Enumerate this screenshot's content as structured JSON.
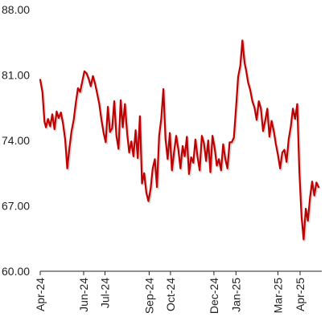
{
  "chart_data": {
    "type": "line",
    "title": "",
    "xlabel": "",
    "ylabel": "",
    "ylim": [
      60,
      88
    ],
    "y_ticks": [
      "60.00",
      "67.00",
      "74.00",
      "81.00",
      "88.00"
    ],
    "x_ticks": [
      {
        "label": "Apr-24",
        "date": "2024-04-01"
      },
      {
        "label": "Jun-24",
        "date": "2024-06-01"
      },
      {
        "label": "Jul-24",
        "date": "2024-07-01"
      },
      {
        "label": "Sep-24",
        "date": "2024-09-01"
      },
      {
        "label": "Oct-24",
        "date": "2024-10-01"
      },
      {
        "label": "Dec-24",
        "date": "2024-12-01"
      },
      {
        "label": "Jan-25",
        "date": "2025-01-01"
      },
      {
        "label": "Mar-25",
        "date": "2025-03-01"
      },
      {
        "label": "Apr-25",
        "date": "2025-04-01"
      }
    ],
    "grid": false,
    "line_color": "#c00000",
    "series": [
      {
        "x": [
          "2024-04-01",
          "2024-04-04",
          "2024-04-07",
          "2024-04-09",
          "2024-04-12",
          "2024-04-15",
          "2024-04-18",
          "2024-04-21",
          "2024-04-24",
          "2024-04-27",
          "2024-04-30",
          "2024-05-03",
          "2024-05-06",
          "2024-05-09",
          "2024-05-12",
          "2024-05-15",
          "2024-05-18",
          "2024-05-21",
          "2024-05-24",
          "2024-05-27",
          "2024-05-30",
          "2024-06-02",
          "2024-06-05",
          "2024-06-08",
          "2024-06-11",
          "2024-06-14",
          "2024-06-17",
          "2024-06-20",
          "2024-06-23",
          "2024-06-26",
          "2024-06-29",
          "2024-07-02",
          "2024-07-05",
          "2024-07-08",
          "2024-07-11",
          "2024-07-14",
          "2024-07-17",
          "2024-07-20",
          "2024-07-23",
          "2024-07-26",
          "2024-07-29",
          "2024-08-01",
          "2024-08-04",
          "2024-08-07",
          "2024-08-10",
          "2024-08-13",
          "2024-08-16",
          "2024-08-19",
          "2024-08-22",
          "2024-08-25",
          "2024-08-28",
          "2024-08-31",
          "2024-09-03",
          "2024-09-06",
          "2024-09-09",
          "2024-09-12",
          "2024-09-15",
          "2024-09-18",
          "2024-09-21",
          "2024-09-24",
          "2024-09-27",
          "2024-09-30",
          "2024-10-03",
          "2024-10-06",
          "2024-10-09",
          "2024-10-12",
          "2024-10-15",
          "2024-10-18",
          "2024-10-21",
          "2024-10-24",
          "2024-10-27",
          "2024-10-30",
          "2024-11-02",
          "2024-11-05",
          "2024-11-08",
          "2024-11-11",
          "2024-11-14",
          "2024-11-17",
          "2024-11-20",
          "2024-11-23",
          "2024-11-26",
          "2024-11-29",
          "2024-12-02",
          "2024-12-05",
          "2024-12-08",
          "2024-12-11",
          "2024-12-14",
          "2024-12-17",
          "2024-12-20",
          "2024-12-23",
          "2024-12-26",
          "2024-12-29",
          "2025-01-01",
          "2025-01-04",
          "2025-01-07",
          "2025-01-10",
          "2025-01-13",
          "2025-01-15",
          "2025-01-18",
          "2025-01-21",
          "2025-01-24",
          "2025-01-27",
          "2025-01-30",
          "2025-02-02",
          "2025-02-05",
          "2025-02-08",
          "2025-02-11",
          "2025-02-14",
          "2025-02-17",
          "2025-02-20",
          "2025-02-23",
          "2025-02-26",
          "2025-03-01",
          "2025-03-04",
          "2025-03-07",
          "2025-03-10",
          "2025-03-13",
          "2025-03-16",
          "2025-03-19",
          "2025-03-22",
          "2025-03-25",
          "2025-03-28",
          "2025-03-31",
          "2025-04-03",
          "2025-04-06",
          "2025-04-09",
          "2025-04-12",
          "2025-04-15",
          "2025-04-18",
          "2025-04-21",
          "2025-04-24",
          "2025-04-27"
        ],
        "values": [
          80.5,
          79.2,
          76.0,
          75.4,
          76.3,
          75.5,
          76.8,
          75.2,
          77.1,
          76.4,
          77.0,
          75.8,
          74.1,
          71.0,
          73.2,
          75.0,
          76.2,
          78.0,
          79.6,
          79.2,
          80.3,
          81.4,
          81.2,
          80.6,
          79.8,
          80.9,
          80.1,
          79.0,
          77.9,
          76.2,
          74.8,
          73.8,
          77.6,
          74.9,
          75.3,
          78.2,
          74.5,
          73.1,
          78.3,
          75.4,
          77.9,
          74.8,
          72.7,
          73.9,
          72.3,
          75.1,
          72.1,
          76.6,
          69.4,
          70.5,
          68.4,
          67.5,
          68.8,
          71.0,
          72.0,
          69.0,
          74.5,
          76.3,
          79.5,
          74.2,
          72.0,
          74.8,
          70.8,
          72.8,
          74.5,
          73.0,
          71.0,
          73.4,
          72.3,
          74.4,
          70.4,
          72.2,
          71.6,
          74.1,
          72.2,
          70.8,
          74.5,
          73.7,
          71.8,
          74.0,
          70.6,
          74.5,
          73.2,
          71.3,
          72.0,
          70.8,
          73.6,
          72.0,
          71.0,
          73.8,
          73.8,
          74.3,
          77.5,
          80.8,
          82.0,
          84.7,
          82.3,
          81.6,
          80.2,
          79.4,
          78.2,
          77.5,
          76.2,
          78.2,
          77.4,
          75.0,
          76.1,
          77.4,
          74.4,
          76.1,
          75.0,
          73.6,
          72.4,
          71.0,
          72.7,
          73.0,
          71.7,
          74.1,
          75.5,
          77.4,
          76.3,
          77.9,
          70.7,
          65.9,
          63.4,
          66.7,
          65.4,
          67.9,
          69.6,
          68.1,
          69.5,
          69.0
        ]
      }
    ]
  }
}
